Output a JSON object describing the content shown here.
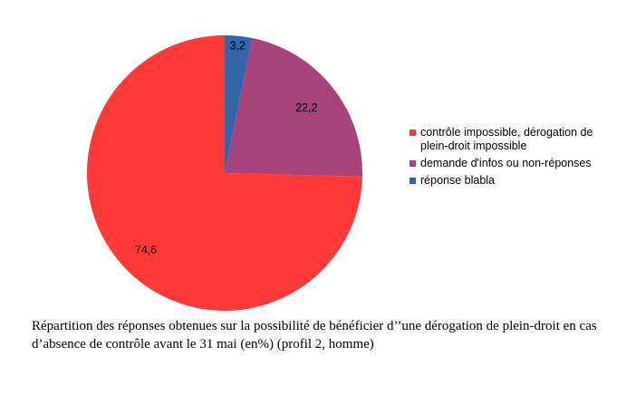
{
  "chart_data": {
    "type": "pie",
    "slices": [
      {
        "label": "contrôle impossible, dérogation de plein-droit impossible",
        "value": 74.6,
        "value_label": "74,6",
        "color": "#ff3838"
      },
      {
        "label": "demande d'infos ou non-réponses",
        "value": 22.2,
        "value_label": "22,2",
        "color": "#a5437a"
      },
      {
        "label": "réponse blabla",
        "value": 3.2,
        "value_label": "3,2",
        "color": "#3365a8"
      }
    ],
    "legend_position": "right",
    "caption": "Répartition des réponses obtenues sur la possibilité de bénéficier d’’une dérogation de plein-droit en cas d’absence de contrôle avant le 31 mai (en%) (profil 2, homme)"
  }
}
